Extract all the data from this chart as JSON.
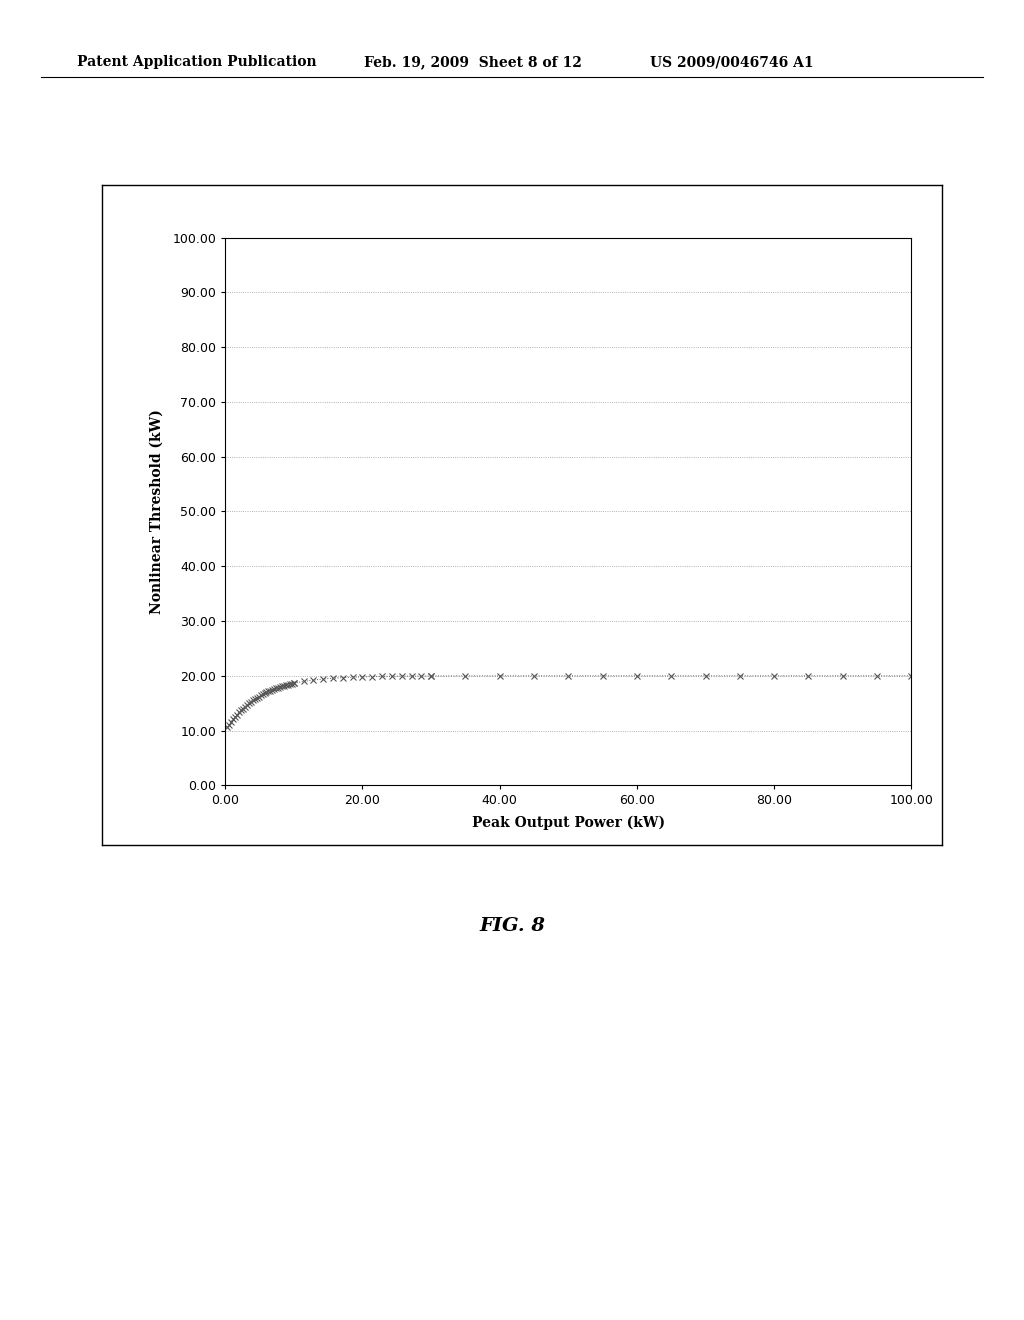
{
  "header_left": "Patent Application Publication",
  "header_mid": "Feb. 19, 2009  Sheet 8 of 12",
  "header_right": "US 2009/0046746 A1",
  "xlabel": "Peak Output Power (kW)",
  "ylabel": "Nonlinear Threshold (kW)",
  "caption": "FIG. 8",
  "xlim": [
    0,
    100
  ],
  "ylim": [
    0,
    100
  ],
  "xticks": [
    0.0,
    20.0,
    40.0,
    60.0,
    80.0,
    100.0
  ],
  "yticks": [
    0.0,
    10.0,
    20.0,
    30.0,
    40.0,
    50.0,
    60.0,
    70.0,
    80.0,
    90.0,
    100.0
  ],
  "background_color": "#ffffff",
  "plot_bg_color": "#ffffff",
  "grid_color": "#999999",
  "data_color": "#555555",
  "marker": "x",
  "marker_size": 4,
  "line_style": "dotted",
  "line_width": 0.7,
  "decay_constant": 5.0,
  "y_asymptote": 20.0,
  "y_start": 10.0
}
